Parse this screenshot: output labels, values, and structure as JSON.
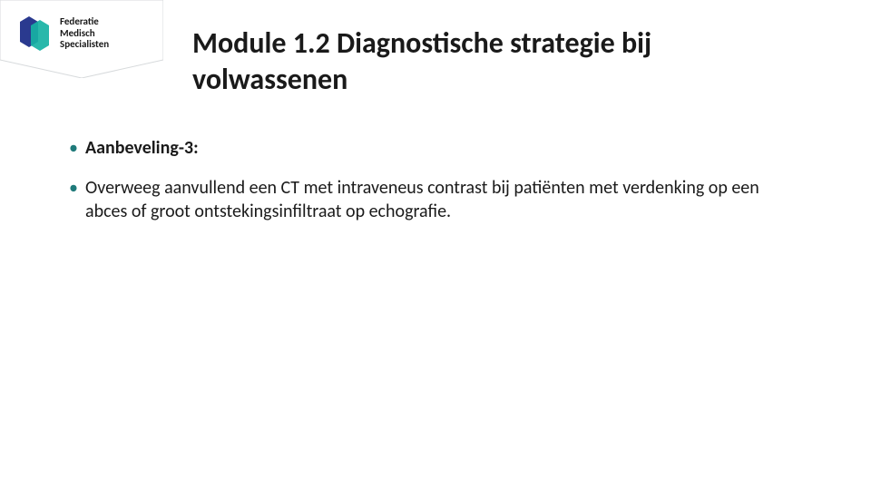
{
  "logo": {
    "line1": "Federatie",
    "line2": "Medisch",
    "line3": "Specialisten",
    "banner_bg_color": "#ffffff",
    "banner_border_color": "#d7dadc",
    "mark_color_left": "#2a3a8f",
    "mark_color_right": "#17b2a4",
    "text_color": "#1a1a1a"
  },
  "title": {
    "text": "Module 1.2 Diagnostische strategie bij volwassenen",
    "fontsize": 32,
    "color": "#1a1a1a"
  },
  "bullet_color": "#1f7a7a",
  "content_fontsize": 20,
  "bullets": [
    {
      "text": "Aanbeveling-3:",
      "bold": true
    },
    {
      "text": "Overweeg aanvullend een CT met intraveneus contrast bij patiënten met verdenking op een abces of groot ontstekingsinfiltraat op echografie.",
      "bold": false
    }
  ],
  "background_color": "#ffffff"
}
